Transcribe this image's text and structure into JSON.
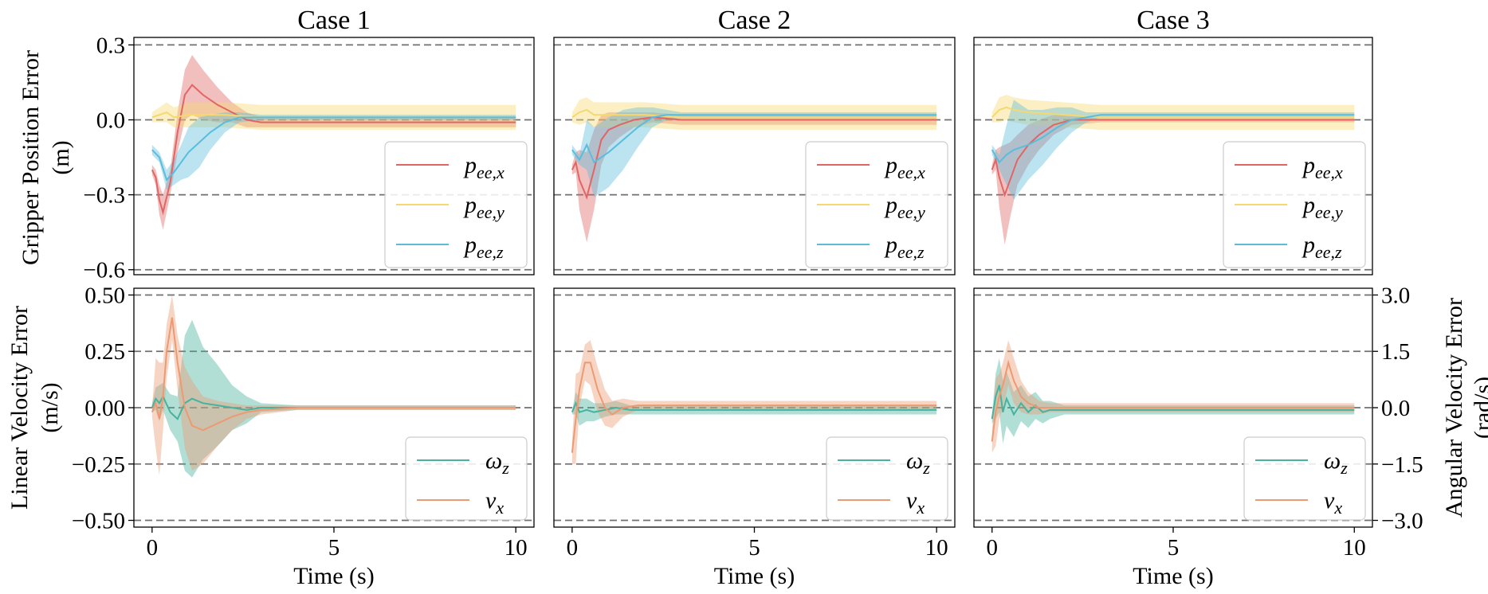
{
  "colors": {
    "p_x": "#e06666",
    "p_y": "#f6d870",
    "p_z": "#5cbcdc",
    "omega": "#45b39d",
    "v_x": "#ec9a73",
    "refline": "#707070"
  },
  "axis_labels": {
    "top_ylabel_1": "Gripper Position Error",
    "top_ylabel_2": "(m)",
    "bottom_ylabel_1": "Linear Velocity Error",
    "bottom_ylabel_2": "(m/s)",
    "right_ylabel_1": "Angular Velocity Error",
    "right_ylabel_2": "(rad/s)",
    "xlabel": "Time (s)"
  },
  "legend": {
    "pos_base": "p",
    "pos_sub_x": "ee,x",
    "pos_sub_y": "ee,y",
    "pos_sub_z": "ee,z",
    "omega_base": "ω",
    "omega_sub": "z",
    "vx_base": "v",
    "vx_sub": "x"
  },
  "chart_data": [
    {
      "type": "line",
      "panel": "Case 1 - position",
      "title": "Case 1",
      "ylabel": "Gripper Position Error (m)",
      "xlim": [
        -0.5,
        10.5
      ],
      "ylim": [
        -0.62,
        0.33
      ],
      "yticks": [
        "0.3",
        "0.0",
        "−0.3",
        "−0.6"
      ],
      "ytick_values": [
        0.3,
        0.0,
        -0.3,
        -0.6
      ],
      "reference_lines": [
        0.3,
        0.0,
        -0.3,
        -0.6
      ],
      "legend_loc": "lower-right",
      "series": [
        {
          "name": "p_ee,x",
          "x": [
            0,
            0.1,
            0.2,
            0.3,
            0.5,
            0.7,
            0.9,
            1.1,
            1.4,
            1.8,
            2.2,
            2.6,
            3,
            4,
            10
          ],
          "y": [
            -0.2,
            -0.23,
            -0.32,
            -0.37,
            -0.25,
            -0.05,
            0.1,
            0.14,
            0.1,
            0.06,
            0.03,
            0.0,
            -0.01,
            -0.01,
            -0.01
          ],
          "band": [
            0.02,
            0.03,
            0.06,
            0.07,
            0.05,
            0.08,
            0.1,
            0.12,
            0.1,
            0.07,
            0.04,
            0.03,
            0.02,
            0.02,
            0.02
          ]
        },
        {
          "name": "p_ee,y",
          "x": [
            0,
            0.2,
            0.4,
            0.6,
            1,
            2,
            3,
            10
          ],
          "y": [
            0.01,
            0.02,
            0.03,
            0.01,
            0.02,
            0.02,
            0.01,
            0.01
          ],
          "band": [
            0.02,
            0.03,
            0.04,
            0.04,
            0.05,
            0.05,
            0.05,
            0.05
          ]
        },
        {
          "name": "p_ee,z",
          "x": [
            0,
            0.2,
            0.4,
            0.6,
            0.8,
            1.0,
            1.3,
            1.6,
            2.0,
            2.4,
            3,
            10
          ],
          "y": [
            -0.12,
            -0.15,
            -0.24,
            -0.21,
            -0.17,
            -0.13,
            -0.09,
            -0.05,
            -0.01,
            0.01,
            0.01,
            0.01
          ],
          "band": [
            0.02,
            0.02,
            0.04,
            0.05,
            0.07,
            0.1,
            0.1,
            0.07,
            0.04,
            0.02,
            0.01,
            0.01
          ]
        }
      ]
    },
    {
      "type": "line",
      "panel": "Case 2 - position",
      "title": "Case 2",
      "xlim": [
        -0.5,
        10.5
      ],
      "ylim": [
        -0.62,
        0.33
      ],
      "yticks": [],
      "reference_lines": [
        0.3,
        0.0,
        -0.3,
        -0.6
      ],
      "legend_loc": "lower-right",
      "series": [
        {
          "name": "p_ee,x",
          "x": [
            0,
            0.1,
            0.2,
            0.4,
            0.6,
            0.8,
            1.0,
            1.3,
            1.7,
            2.2,
            3,
            10
          ],
          "y": [
            -0.2,
            -0.17,
            -0.24,
            -0.31,
            -0.2,
            -0.08,
            -0.04,
            -0.02,
            0.0,
            0.01,
            0.0,
            0.0
          ],
          "band": [
            0.02,
            0.04,
            0.12,
            0.18,
            0.16,
            0.1,
            0.07,
            0.05,
            0.03,
            0.02,
            0.02,
            0.02
          ]
        },
        {
          "name": "p_ee,y",
          "x": [
            0,
            0.2,
            0.4,
            0.6,
            1,
            2,
            3,
            10
          ],
          "y": [
            0.01,
            0.03,
            0.04,
            0.02,
            0.02,
            0.02,
            0.01,
            0.01
          ],
          "band": [
            0.02,
            0.05,
            0.05,
            0.05,
            0.05,
            0.05,
            0.05,
            0.05
          ]
        },
        {
          "name": "p_ee,z",
          "x": [
            0,
            0.2,
            0.4,
            0.6,
            1.0,
            1.4,
            1.8,
            2.2,
            2.6,
            3,
            10
          ],
          "y": [
            -0.12,
            -0.16,
            -0.1,
            -0.17,
            -0.13,
            -0.08,
            -0.03,
            0.01,
            0.02,
            0.02,
            0.02
          ],
          "band": [
            0.02,
            0.02,
            0.1,
            0.14,
            0.14,
            0.12,
            0.08,
            0.04,
            0.02,
            0.01,
            0.01
          ]
        }
      ]
    },
    {
      "type": "line",
      "panel": "Case 3 - position",
      "title": "Case 3",
      "xlim": [
        -0.5,
        10.5
      ],
      "ylim": [
        -0.62,
        0.33
      ],
      "yticks": [],
      "reference_lines": [
        0.3,
        0.0,
        -0.3,
        -0.6
      ],
      "legend_loc": "lower-right",
      "series": [
        {
          "name": "p_ee,x",
          "x": [
            0,
            0.1,
            0.2,
            0.35,
            0.5,
            0.7,
            1.0,
            1.3,
            1.7,
            2.2,
            3,
            10
          ],
          "y": [
            -0.2,
            -0.16,
            -0.23,
            -0.3,
            -0.24,
            -0.16,
            -0.1,
            -0.06,
            -0.02,
            0.0,
            0.0,
            0.0
          ],
          "band": [
            0.02,
            0.04,
            0.12,
            0.2,
            0.15,
            0.1,
            0.08,
            0.06,
            0.04,
            0.02,
            0.01,
            0.01
          ]
        },
        {
          "name": "p_ee,y",
          "x": [
            0,
            0.2,
            0.4,
            0.6,
            1,
            2,
            3,
            10
          ],
          "y": [
            0.01,
            0.04,
            0.05,
            0.04,
            0.03,
            0.02,
            0.01,
            0.01
          ],
          "band": [
            0.02,
            0.05,
            0.05,
            0.05,
            0.05,
            0.05,
            0.05,
            0.05
          ]
        },
        {
          "name": "p_ee,z",
          "x": [
            0,
            0.2,
            0.4,
            0.6,
            1.0,
            1.4,
            1.8,
            2.2,
            2.6,
            3,
            10
          ],
          "y": [
            -0.12,
            -0.17,
            -0.14,
            -0.12,
            -0.1,
            -0.07,
            -0.03,
            0.0,
            0.01,
            0.02,
            0.02
          ],
          "band": [
            0.02,
            0.03,
            0.12,
            0.2,
            0.14,
            0.11,
            0.08,
            0.05,
            0.02,
            0.01,
            0.01
          ]
        }
      ]
    },
    {
      "type": "line",
      "panel": "Case 1 - velocity",
      "xlabel": "Time (s)",
      "ylabel": "Linear Velocity Error (m/s)",
      "xlim": [
        -0.5,
        10.5
      ],
      "ylim": [
        -0.53,
        0.53
      ],
      "xticks": [
        "0",
        "5",
        "10"
      ],
      "xtick_values": [
        0,
        5,
        10
      ],
      "yticks": [
        "0.50",
        "0.25",
        "0.00",
        "−0.25",
        "−0.50"
      ],
      "ytick_values": [
        0.5,
        0.25,
        0.0,
        -0.25,
        -0.5
      ],
      "reference_lines": [
        0.5,
        0.25,
        0.0,
        -0.25,
        -0.5
      ],
      "legend_loc": "lower-right",
      "series": [
        {
          "name": "ω_z",
          "x": [
            0,
            0.1,
            0.2,
            0.3,
            0.5,
            0.7,
            0.9,
            1.1,
            1.4,
            1.8,
            2.2,
            2.6,
            3,
            4,
            10
          ],
          "y": [
            0.0,
            0.04,
            0.02,
            0.05,
            -0.02,
            -0.05,
            0.02,
            0.04,
            0.02,
            0.01,
            0.0,
            -0.01,
            0.0,
            0.0,
            0.0
          ],
          "band": [
            0.02,
            0.05,
            0.08,
            0.06,
            0.08,
            0.1,
            0.3,
            0.35,
            0.25,
            0.18,
            0.1,
            0.06,
            0.02,
            0.01,
            0.01
          ]
        },
        {
          "name": "v_x",
          "x": [
            0,
            0.1,
            0.2,
            0.3,
            0.4,
            0.55,
            0.7,
            0.9,
            1.1,
            1.4,
            1.8,
            2.2,
            2.6,
            3,
            4,
            10
          ],
          "y": [
            -0.02,
            0.02,
            -0.05,
            0.05,
            0.25,
            0.4,
            0.2,
            0.0,
            -0.08,
            -0.1,
            -0.07,
            -0.04,
            -0.02,
            -0.01,
            0.0,
            0.0
          ],
          "band": [
            0.02,
            0.2,
            0.25,
            0.15,
            0.12,
            0.1,
            0.12,
            0.18,
            0.2,
            0.15,
            0.1,
            0.06,
            0.03,
            0.02,
            0.01,
            0.01
          ]
        }
      ]
    },
    {
      "type": "line",
      "panel": "Case 2 - velocity",
      "xlabel": "Time (s)",
      "xlim": [
        -0.5,
        10.5
      ],
      "ylim": [
        -0.53,
        0.53
      ],
      "xticks": [
        "0",
        "5",
        "10"
      ],
      "xtick_values": [
        0,
        5,
        10
      ],
      "yticks": [],
      "reference_lines": [
        0.5,
        0.25,
        0.0,
        -0.25,
        -0.5
      ],
      "legend_loc": "lower-right",
      "series": [
        {
          "name": "ω_z",
          "x": [
            0,
            0.1,
            0.2,
            0.4,
            0.6,
            0.9,
            1.2,
            1.6,
            2,
            3,
            10
          ],
          "y": [
            -0.02,
            0.02,
            -0.02,
            -0.01,
            -0.02,
            -0.01,
            0.0,
            -0.01,
            -0.01,
            -0.01,
            -0.01
          ],
          "band": [
            0.01,
            0.05,
            0.06,
            0.05,
            0.04,
            0.03,
            0.03,
            0.02,
            0.02,
            0.02,
            0.02
          ]
        },
        {
          "name": "v_x",
          "x": [
            0,
            0.1,
            0.2,
            0.35,
            0.5,
            0.7,
            0.9,
            1.1,
            1.4,
            1.8,
            2.2,
            3,
            10
          ],
          "y": [
            -0.2,
            -0.05,
            0.08,
            0.2,
            0.2,
            0.08,
            0.0,
            -0.03,
            0.0,
            0.01,
            0.01,
            0.01,
            0.01
          ],
          "band": [
            0.05,
            0.2,
            0.08,
            0.08,
            0.1,
            0.1,
            0.08,
            0.06,
            0.04,
            0.02,
            0.02,
            0.02,
            0.02
          ]
        }
      ]
    },
    {
      "type": "line",
      "panel": "Case 3 - velocity",
      "xlabel": "Time (s)",
      "ylabel_right": "Angular Velocity Error (rad/s)",
      "xlim": [
        -0.5,
        10.5
      ],
      "ylim": [
        -0.53,
        0.53
      ],
      "xticks": [
        "0",
        "5",
        "10"
      ],
      "xtick_values": [
        0,
        5,
        10
      ],
      "yticks_right": [
        "3.0",
        "1.5",
        "0.0",
        "−1.5",
        "−3.0"
      ],
      "ytick_right_values": [
        3.0,
        1.5,
        0.0,
        -1.5,
        -3.0
      ],
      "reference_lines": [
        0.5,
        0.25,
        0.0,
        -0.25,
        -0.5
      ],
      "legend_loc": "lower-right",
      "series": [
        {
          "name": "ω_z",
          "x": [
            0,
            0.1,
            0.2,
            0.3,
            0.4,
            0.6,
            0.8,
            1.0,
            1.2,
            1.4,
            1.6,
            2,
            3,
            10
          ],
          "y": [
            -0.05,
            0.05,
            0.1,
            -0.02,
            0.04,
            -0.03,
            0.02,
            -0.02,
            0.01,
            -0.02,
            -0.01,
            -0.01,
            -0.01,
            -0.01
          ],
          "band": [
            0.02,
            0.1,
            0.12,
            0.14,
            0.12,
            0.1,
            0.08,
            0.07,
            0.06,
            0.05,
            0.04,
            0.02,
            0.02,
            0.02
          ]
        },
        {
          "name": "v_x",
          "x": [
            0,
            0.1,
            0.2,
            0.3,
            0.45,
            0.6,
            0.8,
            1.0,
            1.3,
            1.6,
            2,
            3,
            10
          ],
          "y": [
            -0.15,
            -0.02,
            0.05,
            0.1,
            0.2,
            0.12,
            0.05,
            0.02,
            0.0,
            0.0,
            0.0,
            0.0,
            0.0
          ],
          "band": [
            0.05,
            0.15,
            0.1,
            0.1,
            0.1,
            0.1,
            0.07,
            0.05,
            0.03,
            0.02,
            0.02,
            0.02,
            0.02
          ]
        }
      ]
    }
  ]
}
